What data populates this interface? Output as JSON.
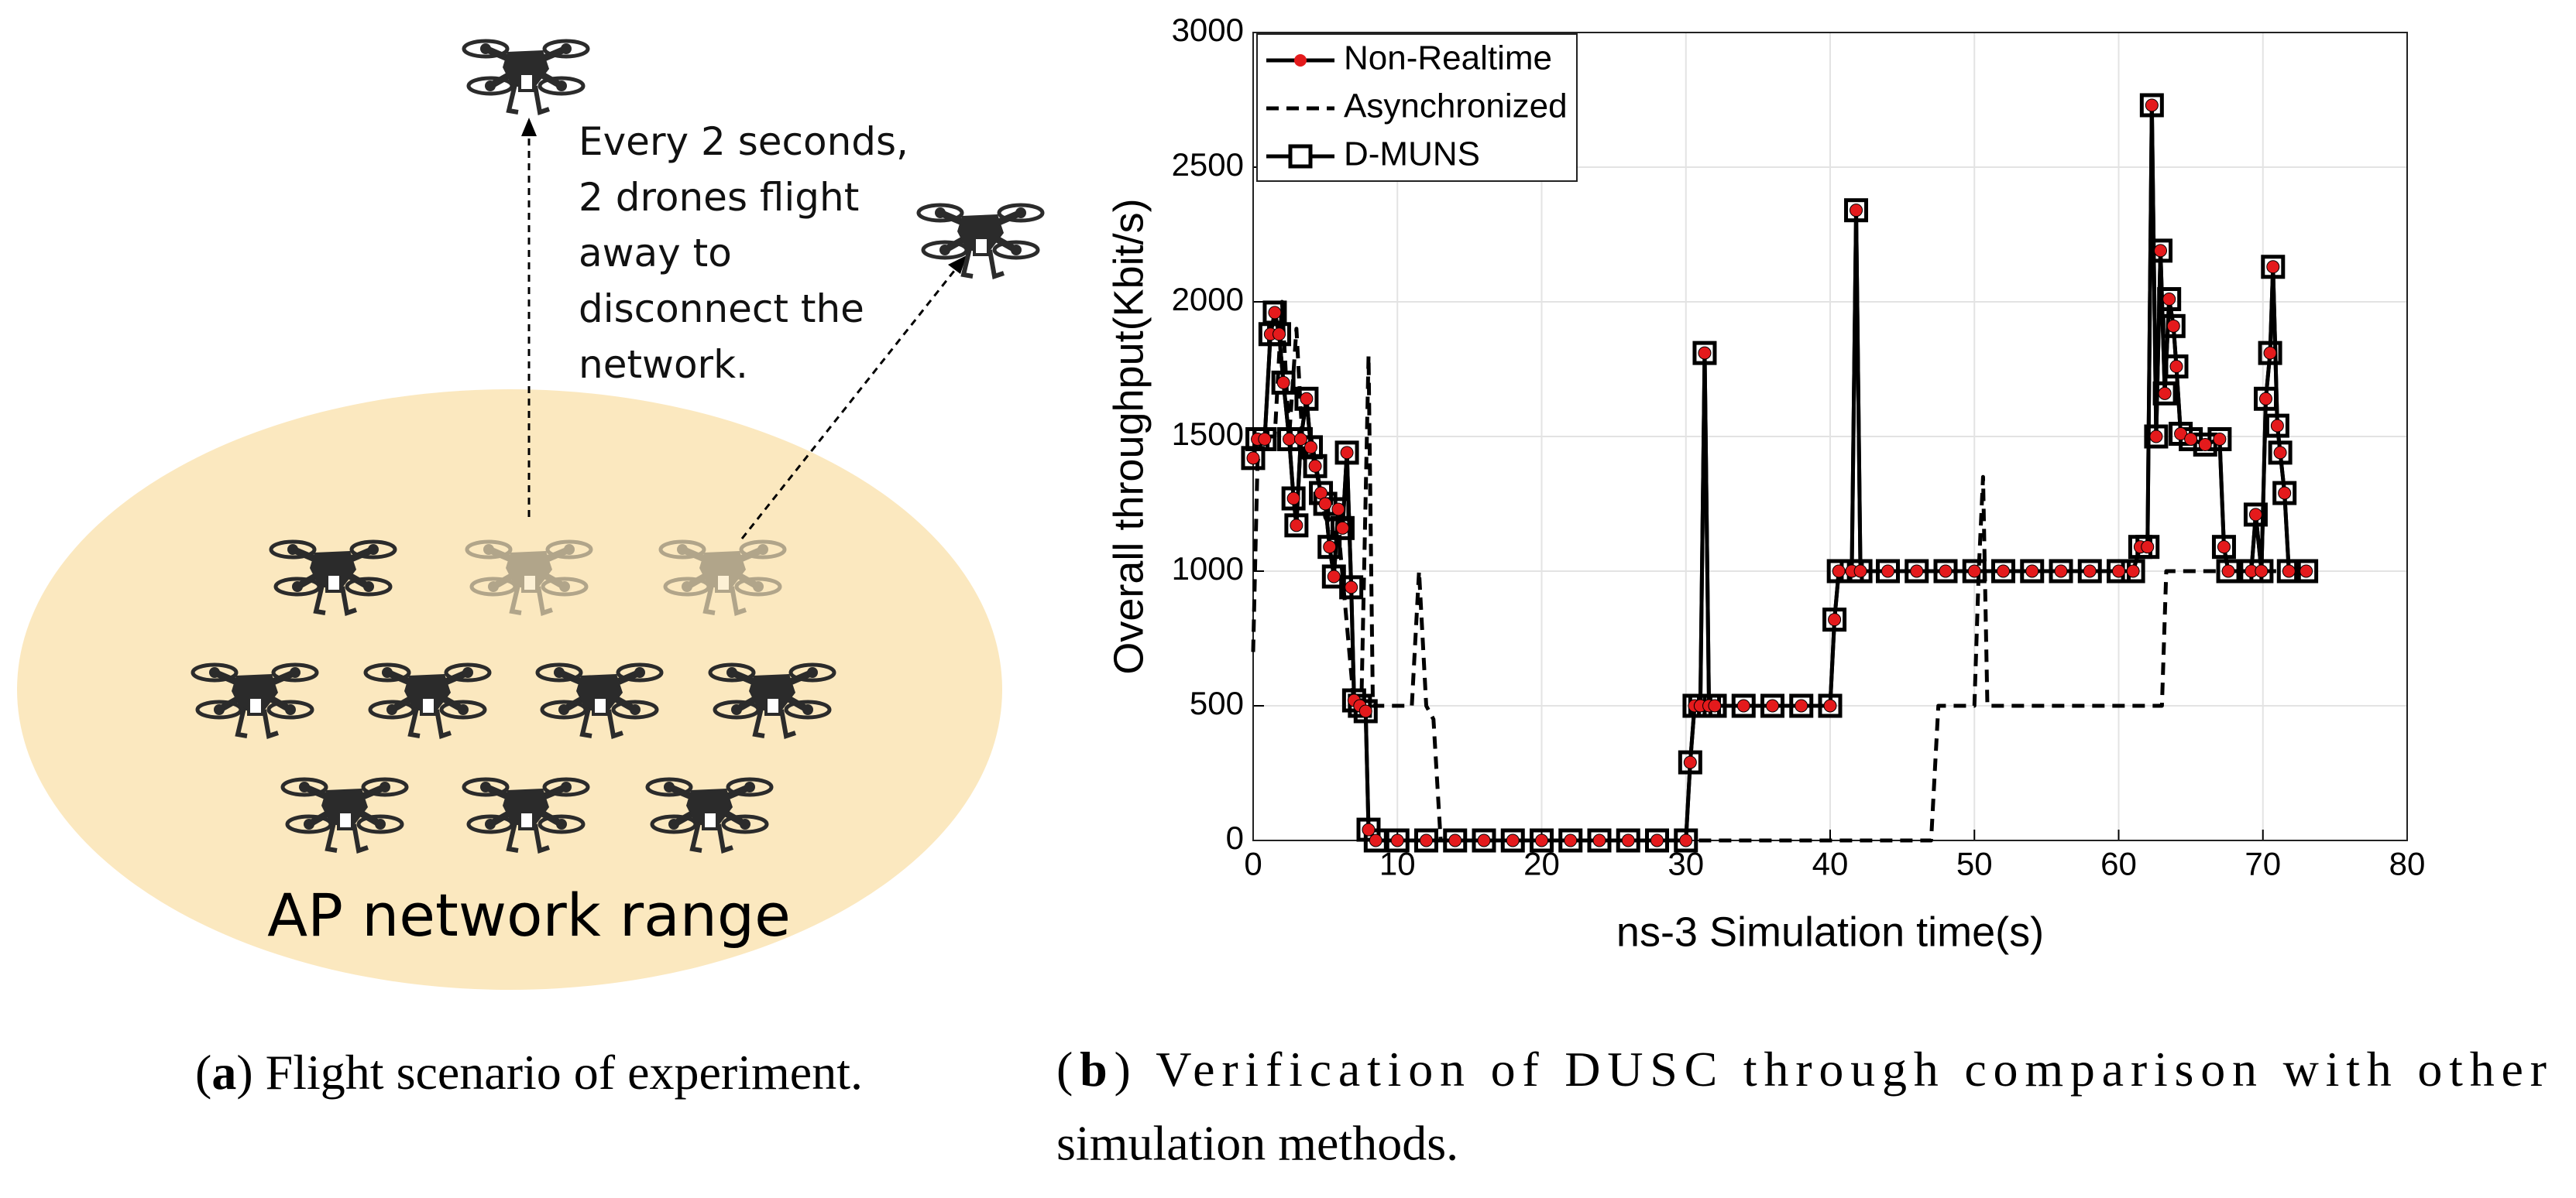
{
  "figure_a": {
    "annotation": [
      "Every 2 seconds,",
      "2 drones flight",
      "away to",
      "disconnect the",
      "network."
    ],
    "range_label": "AP network range"
  },
  "chart_data": {
    "type": "line",
    "xlabel": "ns-3 Simulation time(s)",
    "ylabel": "Overall throughput(Kbit/s)",
    "xlim": [
      0,
      80
    ],
    "xticks": [
      0,
      10,
      20,
      30,
      40,
      50,
      60,
      70,
      80
    ],
    "ylim": [
      0,
      3000
    ],
    "yticks": [
      0,
      500,
      1000,
      1500,
      2000,
      2500,
      3000
    ],
    "grid": true,
    "legend": "upper left",
    "series": [
      {
        "name": "Non-Realtime",
        "color": "#000000",
        "linestyle": "solid",
        "marker": "circle",
        "marker_color": "#e41a1c",
        "x": [
          0,
          0.3,
          0.8,
          1.2,
          1.5,
          1.8,
          2.1,
          2.5,
          2.8,
          3.0,
          3.3,
          3.7,
          4.0,
          4.3,
          4.7,
          5.0,
          5.3,
          5.6,
          5.9,
          6.2,
          6.5,
          6.8,
          7.0,
          7.4,
          7.8,
          8.0,
          8.5,
          10,
          12,
          14,
          16,
          18,
          20,
          22,
          24,
          26,
          28,
          30,
          30.3,
          30.6,
          31,
          31.3,
          31.6,
          32,
          34,
          36,
          38,
          40,
          40.3,
          40.6,
          41.5,
          41.8,
          42.1,
          44,
          46,
          48,
          50,
          52,
          54,
          56,
          58,
          60,
          61,
          61.5,
          62,
          62.3,
          62.6,
          62.9,
          63.2,
          63.5,
          63.8,
          64,
          64.3,
          65,
          66,
          67,
          67.3,
          67.6,
          69.2,
          69.5,
          69.9,
          70.2,
          70.5,
          70.7,
          71,
          71.2,
          71.5,
          71.8,
          73
        ],
        "values": [
          1420,
          1490,
          1490,
          1880,
          1960,
          1880,
          1700,
          1490,
          1270,
          1170,
          1490,
          1640,
          1460,
          1390,
          1290,
          1250,
          1090,
          980,
          1230,
          1160,
          1440,
          940,
          520,
          500,
          480,
          40,
          0,
          0,
          0,
          0,
          0,
          0,
          0,
          0,
          0,
          0,
          0,
          0,
          290,
          500,
          500,
          1810,
          500,
          500,
          500,
          500,
          500,
          500,
          820,
          1000,
          1000,
          2340,
          1000,
          1000,
          1000,
          1000,
          1000,
          1000,
          1000,
          1000,
          1000,
          1000,
          1000,
          1090,
          1090,
          2730,
          1500,
          2190,
          1660,
          2010,
          1910,
          1760,
          1510,
          1490,
          1470,
          1490,
          1090,
          1000,
          1000,
          1210,
          1000,
          1640,
          1810,
          2130,
          1540,
          1440,
          1290,
          1000,
          1000
        ]
      },
      {
        "name": "Asynchronized",
        "color": "#000000",
        "linestyle": "dashed",
        "marker": "none",
        "x": [
          0,
          0.3,
          0.6,
          1.5,
          2,
          2.5,
          3,
          3.5,
          4,
          5,
          6,
          7,
          7.5,
          8,
          8.3,
          11,
          11.5,
          12,
          12.5,
          13,
          47,
          47.5,
          50,
          50.3,
          50.6,
          50.9,
          63,
          63.3,
          64,
          73
        ],
        "values": [
          700,
          1400,
          1500,
          1500,
          2000,
          1500,
          1900,
          1400,
          1500,
          1200,
          1100,
          500,
          500,
          1800,
          500,
          500,
          1000,
          500,
          450,
          0,
          0,
          500,
          500,
          1000,
          1350,
          500,
          500,
          1000,
          1000,
          1000
        ]
      },
      {
        "name": "D-MUNS",
        "color": "#000000",
        "linestyle": "solid",
        "marker": "square",
        "marker_color": "#000000",
        "x": [
          0,
          0.3,
          0.8,
          1.2,
          1.5,
          1.8,
          2.1,
          2.5,
          2.8,
          3.0,
          3.3,
          3.7,
          4.0,
          4.3,
          4.7,
          5.0,
          5.3,
          5.6,
          5.9,
          6.2,
          6.5,
          6.8,
          7.0,
          7.4,
          7.8,
          8.0,
          8.5,
          10,
          12,
          14,
          16,
          18,
          20,
          22,
          24,
          26,
          28,
          30,
          30.3,
          30.6,
          31,
          31.3,
          31.6,
          32,
          34,
          36,
          38,
          40,
          40.3,
          40.6,
          41.5,
          41.8,
          42.1,
          44,
          46,
          48,
          50,
          52,
          54,
          56,
          58,
          60,
          61,
          61.5,
          62,
          62.3,
          62.6,
          62.9,
          63.2,
          63.5,
          63.8,
          64,
          64.3,
          65,
          66,
          67,
          67.3,
          67.6,
          69.2,
          69.5,
          69.9,
          70.2,
          70.5,
          70.7,
          71,
          71.2,
          71.5,
          71.8,
          73
        ],
        "values": [
          1420,
          1490,
          1490,
          1880,
          1960,
          1880,
          1700,
          1490,
          1270,
          1170,
          1490,
          1640,
          1460,
          1390,
          1290,
          1250,
          1090,
          980,
          1230,
          1160,
          1440,
          940,
          520,
          500,
          480,
          40,
          0,
          0,
          0,
          0,
          0,
          0,
          0,
          0,
          0,
          0,
          0,
          0,
          290,
          500,
          500,
          1810,
          500,
          500,
          500,
          500,
          500,
          500,
          820,
          1000,
          1000,
          2340,
          1000,
          1000,
          1000,
          1000,
          1000,
          1000,
          1000,
          1000,
          1000,
          1000,
          1000,
          1090,
          1090,
          2730,
          1500,
          2190,
          1660,
          2010,
          1910,
          1760,
          1510,
          1490,
          1470,
          1490,
          1090,
          1000,
          1000,
          1210,
          1000,
          1640,
          1810,
          2130,
          1540,
          1440,
          1290,
          1000,
          1000
        ]
      }
    ]
  },
  "captions": [
    {
      "parts": [
        "(",
        "a",
        ") Flight scenario of experiment."
      ]
    },
    {
      "parts": [
        "(",
        "b",
        ") Verification of DUSC through comparison with other"
      ],
      "continuation": "simulation methods."
    }
  ]
}
